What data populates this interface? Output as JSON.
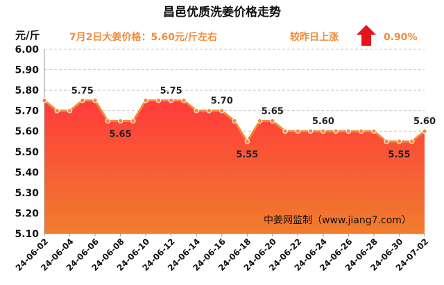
{
  "colors": {
    "accent_orange": "#f08c3c",
    "line": "#f08c3c",
    "fill_top": "#ff3b3b",
    "fill_bottom": "#f07d2e",
    "up_arrow": "#e8121a",
    "grid": "#c8c8c8"
  },
  "header": {
    "title": "昌邑优质洗姜价格走势",
    "unit": "元/斤",
    "price_note": "7月2日大姜价格：5.60元/斤左右",
    "change_label": "较昨日上涨",
    "change_value": "0.90%",
    "change_icon": "up-arrow-icon"
  },
  "source": "中姜网监制（www.jiang7.com）",
  "chart_data": {
    "type": "area",
    "title": "昌邑优质洗姜价格走势",
    "ylabel": "元/斤",
    "xlabel": "",
    "ylim": [
      5.1,
      6.0
    ],
    "yticks": [
      "5.10",
      "5.20",
      "5.30",
      "5.40",
      "5.50",
      "5.60",
      "5.70",
      "5.80",
      "5.90",
      "6.00"
    ],
    "grid": true,
    "x": [
      "24-06-02",
      "24-06-03",
      "24-06-04",
      "24-06-05",
      "24-06-06",
      "24-06-07",
      "24-06-08",
      "24-06-09",
      "24-06-10",
      "24-06-11",
      "24-06-12",
      "24-06-13",
      "24-06-14",
      "24-06-15",
      "24-06-16",
      "24-06-17",
      "24-06-18",
      "24-06-19",
      "24-06-20",
      "24-06-21",
      "24-06-22",
      "24-06-23",
      "24-06-24",
      "24-06-25",
      "24-06-26",
      "24-06-27",
      "24-06-28",
      "24-06-29",
      "24-06-30",
      "24-07-01",
      "24-07-02"
    ],
    "xticks": [
      "24-06-02",
      "24-06-04",
      "24-06-06",
      "24-06-08",
      "24-06-10",
      "24-06-12",
      "24-06-14",
      "24-06-16",
      "24-06-18",
      "24-06-20",
      "24-06-22",
      "24-06-24",
      "24-06-26",
      "24-06-28",
      "24-06-30",
      "24-07-02"
    ],
    "values": [
      5.75,
      5.7,
      5.7,
      5.75,
      5.75,
      5.65,
      5.65,
      5.65,
      5.75,
      5.75,
      5.75,
      5.75,
      5.7,
      5.7,
      5.7,
      5.65,
      5.55,
      5.65,
      5.65,
      5.6,
      5.6,
      5.6,
      5.6,
      5.6,
      5.6,
      5.6,
      5.6,
      5.55,
      5.55,
      5.55,
      5.6
    ],
    "data_labels": [
      {
        "index": 3,
        "text": "5.75",
        "pos": "above"
      },
      {
        "index": 6,
        "text": "5.65",
        "pos": "below"
      },
      {
        "index": 10,
        "text": "5.75",
        "pos": "above"
      },
      {
        "index": 14,
        "text": "5.70",
        "pos": "above"
      },
      {
        "index": 16,
        "text": "5.55",
        "pos": "below"
      },
      {
        "index": 18,
        "text": "5.65",
        "pos": "above"
      },
      {
        "index": 22,
        "text": "5.60",
        "pos": "above"
      },
      {
        "index": 28,
        "text": "5.55",
        "pos": "below"
      },
      {
        "index": 30,
        "text": "5.60",
        "pos": "above"
      }
    ]
  }
}
